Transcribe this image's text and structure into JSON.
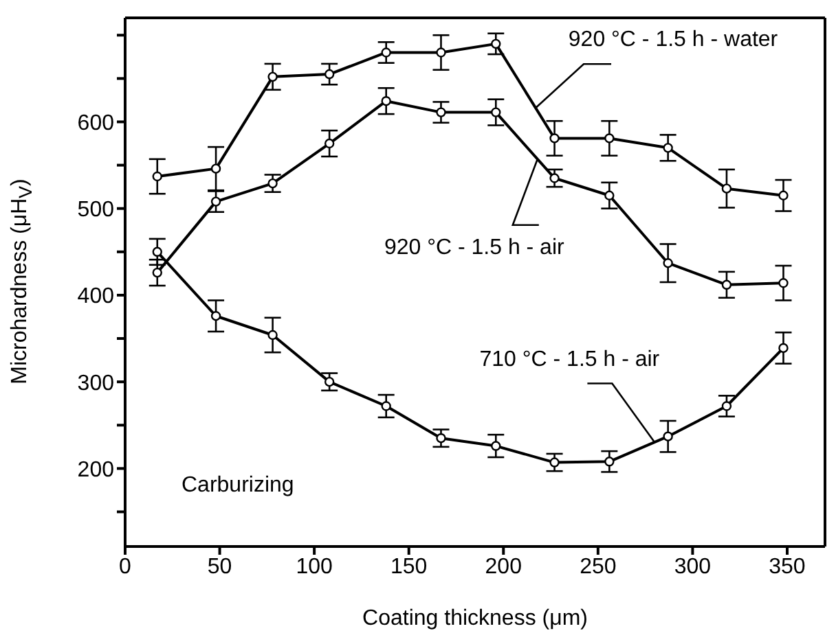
{
  "chart_data": {
    "type": "line",
    "xlabel": "Coating thickness (μm)",
    "ylabel": "Microhardness (μH$_{V}$)",
    "x": [
      17,
      48,
      78,
      108,
      138,
      167,
      196,
      227,
      256,
      287,
      318,
      348
    ],
    "series": [
      {
        "color": "#000000",
        "values": [
          537,
          546,
          652,
          655,
          680,
          680,
          690,
          581,
          581,
          570,
          523,
          515
        ],
        "errors": [
          20,
          25,
          15,
          12,
          12,
          20,
          12,
          20,
          20,
          15,
          22,
          18
        ]
      },
      {
        "color": "#000000",
        "values": [
          426,
          508,
          529,
          575,
          624,
          611,
          611,
          535,
          515,
          437,
          412,
          414
        ],
        "errors": [
          15,
          12,
          10,
          15,
          15,
          12,
          15,
          10,
          15,
          22,
          15,
          20
        ]
      },
      {
        "color": "#000000",
        "values": [
          450,
          376,
          354,
          300,
          272,
          235,
          226,
          207,
          208,
          237,
          272,
          339
        ],
        "errors": [
          15,
          18,
          20,
          10,
          13,
          10,
          13,
          10,
          12,
          18,
          12,
          18
        ]
      }
    ],
    "xlim": [
      0,
      370
    ],
    "xticks": [
      0,
      50,
      100,
      150,
      200,
      250,
      300,
      350
    ],
    "ylim": [
      110,
      720
    ],
    "yticks": [
      {
        "value": 150,
        "label": null
      },
      200,
      {
        "value": 250,
        "label": null
      },
      300,
      {
        "value": 350,
        "label": null
      },
      400,
      {
        "value": 450,
        "label": null
      },
      500,
      {
        "value": 550,
        "label": null
      },
      600,
      {
        "value": 650,
        "label": null
      },
      {
        "value": 700,
        "label": null
      }
    ],
    "marker": "circle",
    "line_style": "solid",
    "grid": false,
    "annotations": [
      {
        "text": "920 °C - 1.5 h - water",
        "x": 217,
        "y": 616
      },
      {
        "text": "920 °C - 1.5 h - air",
        "x": 218,
        "y": 557
      },
      {
        "text": "710 °C - 1.5 h - air",
        "x": 280,
        "y": 230
      },
      "Carburizing"
    ]
  }
}
